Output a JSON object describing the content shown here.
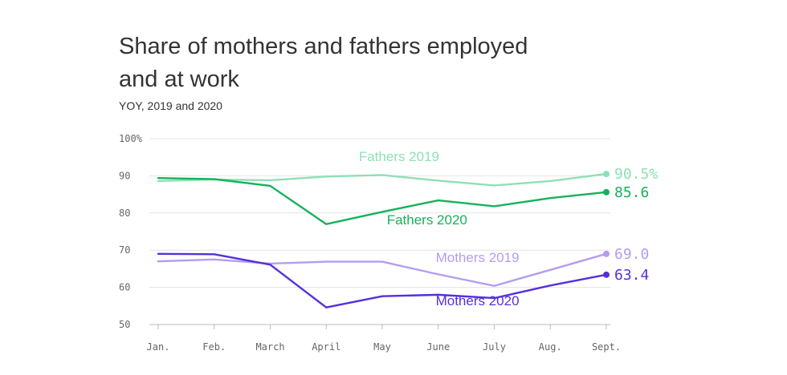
{
  "chart_data": {
    "type": "line",
    "title": "Share of mothers and fathers employed and at work",
    "subtitle": "YOY, 2019 and 2020",
    "categories": [
      "Jan.",
      "Feb.",
      "March",
      "April",
      "May",
      "June",
      "July",
      "Aug.",
      "Sept."
    ],
    "ylim": [
      50,
      100
    ],
    "yticks": [
      {
        "value": 100,
        "label": "100%"
      },
      {
        "value": 90,
        "label": "90"
      },
      {
        "value": 80,
        "label": "80"
      },
      {
        "value": 70,
        "label": "70"
      },
      {
        "value": 60,
        "label": "60"
      },
      {
        "value": 50,
        "label": "50"
      }
    ],
    "grid": true,
    "series": [
      {
        "name": "Fathers 2019",
        "color": "#8fe0b5",
        "end_label": "90.5%",
        "values": [
          88.6,
          89.0,
          88.8,
          89.8,
          90.2,
          88.7,
          87.4,
          88.6,
          90.5
        ]
      },
      {
        "name": "Fathers 2020",
        "color": "#16b25a",
        "end_label": "85.6",
        "values": [
          89.4,
          89.1,
          87.3,
          77.0,
          80.3,
          83.4,
          81.8,
          84.0,
          85.6
        ]
      },
      {
        "name": "Mothers 2019",
        "color": "#b49cf0",
        "end_label": "69.0",
        "values": [
          67.0,
          67.5,
          66.4,
          66.9,
          66.9,
          63.5,
          60.4,
          64.7,
          69.0
        ]
      },
      {
        "name": "Mothers 2020",
        "color": "#5530d9",
        "end_label": "63.4",
        "values": [
          69.0,
          68.9,
          66.1,
          54.6,
          57.6,
          58.0,
          57.1,
          60.5,
          63.4
        ]
      }
    ]
  }
}
